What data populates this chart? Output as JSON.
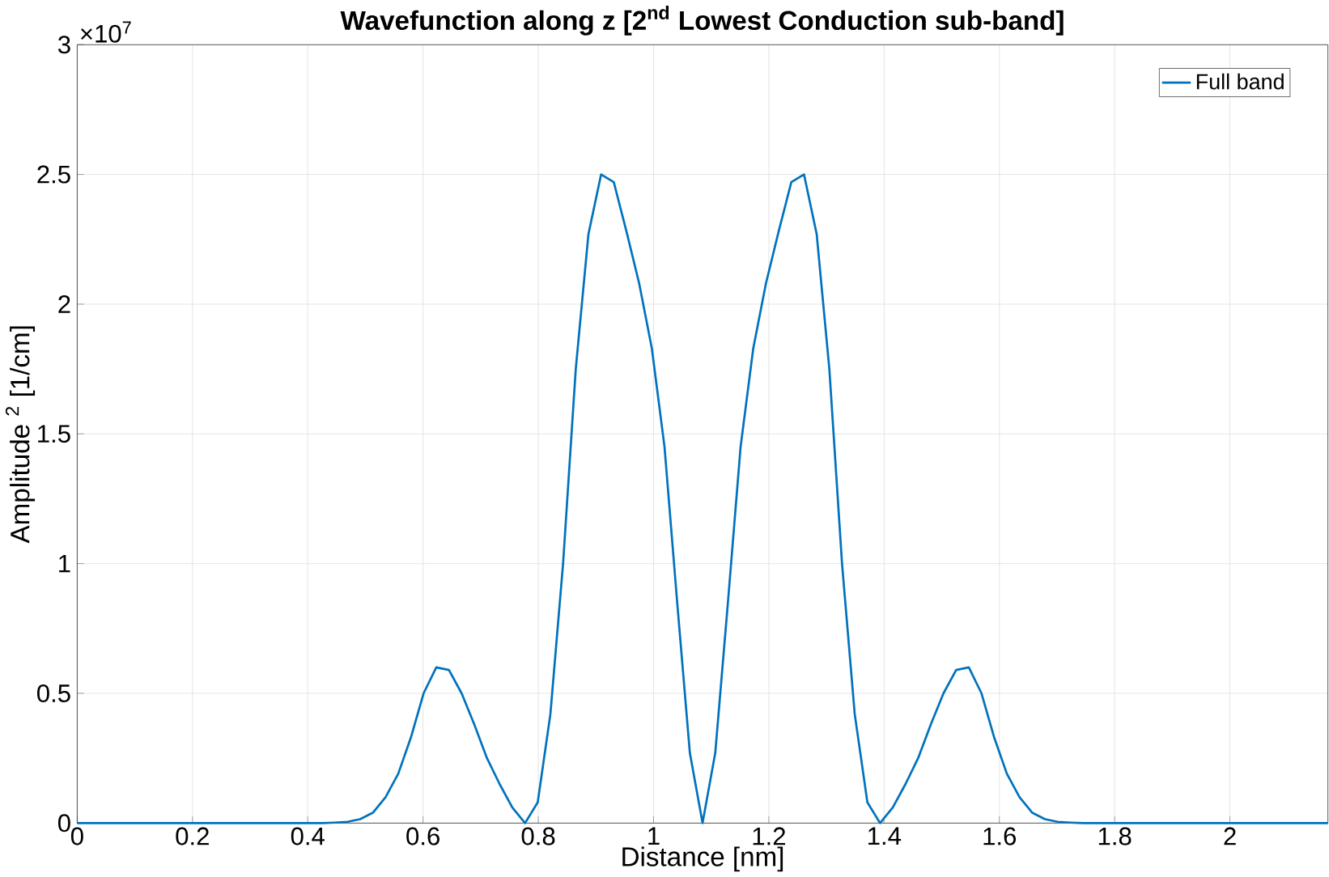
{
  "chart_data": {
    "type": "line",
    "title": "Wavefunction along z [2$^{nd}$ Lowest Conduction sub-band]",
    "xlabel": "Distance [nm]",
    "ylabel": "Amplitude $^{2}$ [1/cm]",
    "annotations": [
      "×10$^{7}$"
    ],
    "xlim": [
      0,
      2.17
    ],
    "ylim": [
      0,
      3
    ],
    "xticks": [
      0,
      0.2,
      0.4,
      0.6,
      0.8,
      1,
      1.2,
      1.4,
      1.6,
      1.8,
      2
    ],
    "yticks": [
      0,
      0.5,
      1,
      1.5,
      2,
      2.5,
      3
    ],
    "grid": true,
    "legend": "top right",
    "marker": "none",
    "line_style": "solid",
    "series": [
      {
        "name": "Full band",
        "color": "#0072bd",
        "x": [
          0,
          0.425,
          0.447,
          0.469,
          0.491,
          0.513,
          0.535,
          0.557,
          0.579,
          0.601,
          0.623,
          0.645,
          0.667,
          0.689,
          0.711,
          0.733,
          0.755,
          0.777,
          0.799,
          0.821,
          0.843,
          0.865,
          0.887,
          0.909,
          0.931,
          0.953,
          0.975,
          0.997,
          1.019,
          1.041,
          1.063,
          1.085,
          1.107,
          1.129,
          1.151,
          1.173,
          1.195,
          1.217,
          1.239,
          1.261,
          1.283,
          1.305,
          1.327,
          1.349,
          1.371,
          1.393,
          1.415,
          1.437,
          1.459,
          1.481,
          1.503,
          1.525,
          1.547,
          1.569,
          1.591,
          1.613,
          1.635,
          1.657,
          1.679,
          1.701,
          1.723,
          1.745,
          2.17
        ],
        "values": [
          0,
          0,
          0.002,
          0.005,
          0.015,
          0.04,
          0.1,
          0.19,
          0.33,
          0.5,
          0.6,
          0.59,
          0.5,
          0.38,
          0.25,
          0.15,
          0.06,
          0,
          0.08,
          0.42,
          1.0,
          1.75,
          2.27,
          2.5,
          2.47,
          2.28,
          2.08,
          1.83,
          1.45,
          0.85,
          0.27,
          0,
          0.27,
          0.85,
          1.45,
          1.83,
          2.08,
          2.28,
          2.47,
          2.5,
          2.27,
          1.75,
          1.0,
          0.42,
          0.08,
          0,
          0.06,
          0.15,
          0.25,
          0.38,
          0.5,
          0.59,
          0.6,
          0.5,
          0.33,
          0.19,
          0.1,
          0.04,
          0.015,
          0.005,
          0.002,
          0,
          0
        ]
      }
    ]
  }
}
